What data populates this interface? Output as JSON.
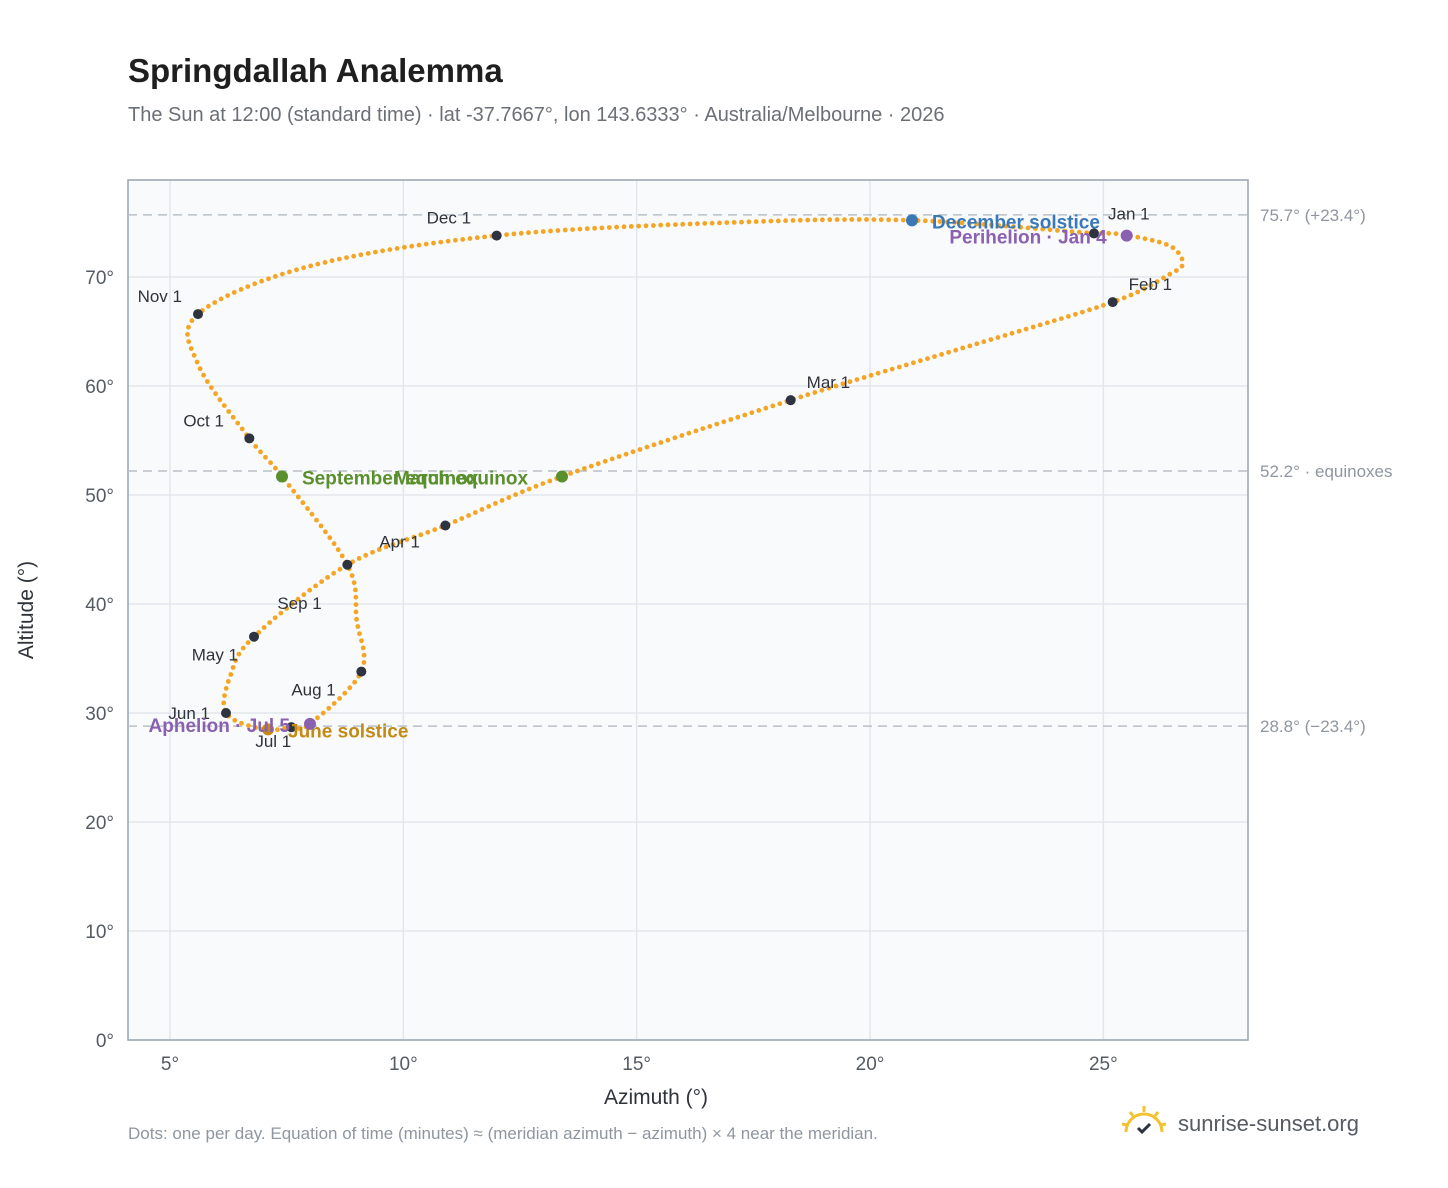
{
  "header": {
    "title": "Springdallah Analemma",
    "subtitle": "The Sun at 12:00 (standard time) · lat -37.7667°, lon 143.6333° · Australia/Melbourne · 2026"
  },
  "footer": {
    "note": "Dots: one per day. Equation of time (minutes) ≈ (meridian azimuth − azimuth) × 4 near the meridian.",
    "brand": "sunrise-sunset.org",
    "brand_icon": "sunrise-check-icon"
  },
  "colors": {
    "path": "#f5a524",
    "month_dot": "#2d3340",
    "equinox": "#5a8f2e",
    "december_solstice": "#3a78b8",
    "june_solstice": "#c38a14",
    "apsis": "#8a60b0",
    "reference_line": "#b9c0c8",
    "plot_bg": "#f8fafc",
    "grid": "#e3e7ec",
    "frame": "#98a2b0"
  },
  "chart_data": {
    "type": "scatter",
    "title": "Springdallah Analemma",
    "xlabel": "Azimuth (°)",
    "ylabel": "Altitude (°)",
    "xlim": [
      4.1,
      28.1
    ],
    "ylim": [
      0,
      78.9
    ],
    "x_ticks": [
      5,
      10,
      15,
      20,
      25
    ],
    "x_tick_labels": [
      "5°",
      "10°",
      "15°",
      "20°",
      "25°"
    ],
    "y_ticks": [
      0,
      10,
      20,
      30,
      40,
      50,
      60,
      70
    ],
    "y_tick_labels": [
      "0°",
      "10°",
      "20°",
      "30°",
      "40°",
      "50°",
      "60°",
      "70°"
    ],
    "grid": true,
    "series": [
      {
        "role": "daily-path",
        "path_anchors": [
          {
            "x": 24.8,
            "y": 74.0
          },
          {
            "x": 25.4,
            "y": 73.9
          },
          {
            "x": 26.4,
            "y": 72.9
          },
          {
            "x": 26.7,
            "y": 71.3
          },
          {
            "x": 26.4,
            "y": 70.2
          },
          {
            "x": 25.2,
            "y": 67.7
          },
          {
            "x": 22.0,
            "y": 63.5
          },
          {
            "x": 18.3,
            "y": 58.7
          },
          {
            "x": 13.4,
            "y": 51.7
          },
          {
            "x": 10.9,
            "y": 47.2
          },
          {
            "x": 8.8,
            "y": 43.6
          },
          {
            "x": 6.8,
            "y": 37.0
          },
          {
            "x": 6.3,
            "y": 33.5
          },
          {
            "x": 6.2,
            "y": 30.0
          },
          {
            "x": 7.0,
            "y": 28.5
          },
          {
            "x": 7.6,
            "y": 28.7
          },
          {
            "x": 8.0,
            "y": 29.0
          },
          {
            "x": 9.1,
            "y": 33.8
          },
          {
            "x": 9.0,
            "y": 38.5
          },
          {
            "x": 8.8,
            "y": 43.6
          },
          {
            "x": 7.4,
            "y": 51.7
          },
          {
            "x": 6.7,
            "y": 55.2
          },
          {
            "x": 5.6,
            "y": 62.0
          },
          {
            "x": 5.6,
            "y": 66.6
          },
          {
            "x": 8.0,
            "y": 71.0
          },
          {
            "x": 12.0,
            "y": 73.8
          },
          {
            "x": 17.0,
            "y": 75.0
          },
          {
            "x": 20.9,
            "y": 75.2
          },
          {
            "x": 24.8,
            "y": 74.0
          }
        ]
      }
    ],
    "month_markers": [
      {
        "label": "Jan 1",
        "x": 24.8,
        "y": 74.0
      },
      {
        "label": "Feb 1",
        "x": 25.2,
        "y": 67.7
      },
      {
        "label": "Mar 1",
        "x": 18.3,
        "y": 58.7
      },
      {
        "label": "Apr 1",
        "x": 10.9,
        "y": 47.2
      },
      {
        "label": "May 1",
        "x": 6.8,
        "y": 37.0
      },
      {
        "label": "Jun 1",
        "x": 6.2,
        "y": 30.0
      },
      {
        "label": "Jul 1",
        "x": 7.6,
        "y": 28.7
      },
      {
        "label": "Aug 1",
        "x": 9.1,
        "y": 33.8
      },
      {
        "label": "Sep 1",
        "x": 8.8,
        "y": 43.6
      },
      {
        "label": "Oct 1",
        "x": 6.7,
        "y": 55.2
      },
      {
        "label": "Nov 1",
        "x": 5.6,
        "y": 66.6
      },
      {
        "label": "Dec 1",
        "x": 12.0,
        "y": 73.8
      }
    ],
    "events": [
      {
        "label": "December solstice",
        "x": 20.9,
        "y": 75.2,
        "kind": "december_solstice"
      },
      {
        "label": "Perihelion · Jan 4",
        "x": 25.5,
        "y": 73.8,
        "kind": "apsis"
      },
      {
        "label": "March equinox",
        "x": 13.4,
        "y": 51.7,
        "kind": "equinox"
      },
      {
        "label": "September equinox",
        "x": 7.4,
        "y": 51.7,
        "kind": "equinox"
      },
      {
        "label": "June solstice",
        "x": 7.1,
        "y": 28.5,
        "kind": "june_solstice"
      },
      {
        "label": "Aphelion · Jul 5",
        "x": 8.0,
        "y": 29.0,
        "kind": "apsis"
      }
    ],
    "reference_lines": [
      {
        "y": 75.7,
        "label": "75.7° (+23.4°)"
      },
      {
        "y": 52.2,
        "label": "52.2° · equinoxes"
      },
      {
        "y": 28.8,
        "label": "28.8° (−23.4°)"
      }
    ]
  }
}
